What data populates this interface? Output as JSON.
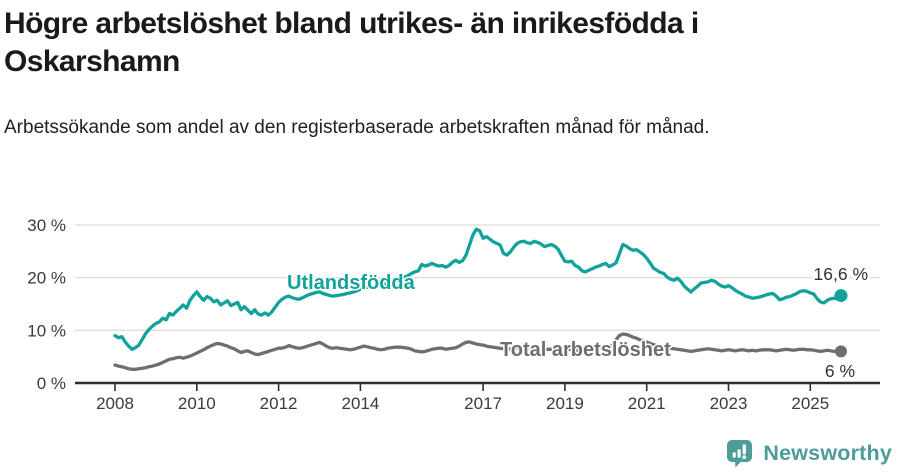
{
  "header": {
    "title": "Högre arbetslöshet bland utrikes- än inrikesfödda i Oskarshamn",
    "subtitle": "Arbetssökande som andel av den registerbaserade arbetskraften månad för månad."
  },
  "chart_data": {
    "type": "line",
    "title": "Högre arbetslöshet bland utrikes- än inrikesfödda i Oskarshamn",
    "subtitle": "Arbetssökande som andel av den registerbaserade arbetskraften månad för månad.",
    "xlabel": "",
    "ylabel": "",
    "ylim": [
      0,
      31
    ],
    "xlim": [
      2008.0,
      2025.83
    ],
    "grid": "horizontal",
    "legend_position": "inline-labels",
    "x_start": 2008.0,
    "x_step": 0.083333,
    "x_tick_years": [
      2008,
      2010,
      2012,
      2014,
      2017,
      2019,
      2021,
      2023,
      2025
    ],
    "x_tick_labels": [
      "2008",
      "2010",
      "2012",
      "2014",
      "2017",
      "2019",
      "2021",
      "2023",
      "2025"
    ],
    "y_ticks": [
      0,
      10,
      20,
      30
    ],
    "y_tick_labels": [
      "0 %",
      "10 %",
      "20 %",
      "30 %"
    ],
    "series": [
      {
        "name": "Utlandsfödda",
        "color": "#12a29c",
        "end_label": "16,6 %",
        "end_value": 16.6,
        "values": [
          9.0,
          8.6,
          8.8,
          7.8,
          7.0,
          6.4,
          6.7,
          7.2,
          8.3,
          9.4,
          10.2,
          10.8,
          11.3,
          11.6,
          12.3,
          12.0,
          13.2,
          12.9,
          13.6,
          14.2,
          14.8,
          14.2,
          15.7,
          16.6,
          17.3,
          16.4,
          15.7,
          16.4,
          16.1,
          15.4,
          15.7,
          14.8,
          15.2,
          15.6,
          14.7,
          15.0,
          15.3,
          13.9,
          14.5,
          13.8,
          13.2,
          13.9,
          13.1,
          12.9,
          13.3,
          12.9,
          13.5,
          14.4,
          15.3,
          15.9,
          16.3,
          16.5,
          16.2,
          16.0,
          15.9,
          16.2,
          16.5,
          16.8,
          17.0,
          17.2,
          17.3,
          17.0,
          16.8,
          16.6,
          16.5,
          16.6,
          16.7,
          16.8,
          17.0,
          17.1,
          17.3,
          17.5,
          17.8,
          18.0,
          18.2,
          18.1,
          18.0,
          18.3,
          18.5,
          18.7,
          18.9,
          19.0,
          19.2,
          19.5,
          19.8,
          20.1,
          20.4,
          20.8,
          21.1,
          21.3,
          22.5,
          22.2,
          22.4,
          22.7,
          22.4,
          22.2,
          22.3,
          22.0,
          22.3,
          22.9,
          23.3,
          22.9,
          23.2,
          24.3,
          26.2,
          28.1,
          29.2,
          28.9,
          27.5,
          27.8,
          27.3,
          26.8,
          26.5,
          26.2,
          24.6,
          24.3,
          24.9,
          25.8,
          26.5,
          26.8,
          26.9,
          26.6,
          26.5,
          26.9,
          26.7,
          26.4,
          25.9,
          26.1,
          26.3,
          26.0,
          25.4,
          24.2,
          23.1,
          23.0,
          23.1,
          22.3,
          22.0,
          21.3,
          21.1,
          21.4,
          21.7,
          22.0,
          22.2,
          22.5,
          22.7,
          22.1,
          22.4,
          22.8,
          24.5,
          26.3,
          26.0,
          25.5,
          25.2,
          25.3,
          24.9,
          24.4,
          23.7,
          22.8,
          21.8,
          21.4,
          21.0,
          20.8,
          20.1,
          19.7,
          19.5,
          19.9,
          19.3,
          18.4,
          17.8,
          17.3,
          17.9,
          18.4,
          19.0,
          19.1,
          19.2,
          19.5,
          19.3,
          18.8,
          18.4,
          18.2,
          18.5,
          18.1,
          17.6,
          17.2,
          16.9,
          16.5,
          16.3,
          16.1,
          16.2,
          16.3,
          16.5,
          16.7,
          16.9,
          17.0,
          16.5,
          15.8,
          16.0,
          16.3,
          16.4,
          16.7,
          17.0,
          17.4,
          17.5,
          17.4,
          17.1,
          16.9,
          16.0,
          15.4,
          15.2,
          15.7,
          16.0,
          16.1,
          16.0,
          16.6
        ]
      },
      {
        "name": "Total arbetslöshet",
        "color": "#6e6e6e",
        "end_label": "6 %",
        "end_value": 6.0,
        "values": [
          3.4,
          3.2,
          3.1,
          2.9,
          2.7,
          2.6,
          2.6,
          2.7,
          2.8,
          2.9,
          3.1,
          3.2,
          3.4,
          3.6,
          3.9,
          4.2,
          4.5,
          4.6,
          4.8,
          4.9,
          4.7,
          4.9,
          5.1,
          5.4,
          5.7,
          6.0,
          6.3,
          6.7,
          7.0,
          7.3,
          7.5,
          7.4,
          7.2,
          7.0,
          6.7,
          6.5,
          6.1,
          5.8,
          6.0,
          6.1,
          5.8,
          5.5,
          5.4,
          5.6,
          5.8,
          6.0,
          6.2,
          6.4,
          6.6,
          6.6,
          6.8,
          7.1,
          6.9,
          6.7,
          6.6,
          6.7,
          6.9,
          7.1,
          7.3,
          7.5,
          7.7,
          7.4,
          7.0,
          6.7,
          6.6,
          6.7,
          6.6,
          6.5,
          6.4,
          6.3,
          6.4,
          6.6,
          6.8,
          7.0,
          6.9,
          6.7,
          6.6,
          6.4,
          6.3,
          6.4,
          6.6,
          6.7,
          6.8,
          6.8,
          6.8,
          6.7,
          6.6,
          6.4,
          6.1,
          6.0,
          5.9,
          6.0,
          6.2,
          6.4,
          6.5,
          6.6,
          6.6,
          6.4,
          6.5,
          6.6,
          6.7,
          7.0,
          7.4,
          7.7,
          7.8,
          7.6,
          7.4,
          7.3,
          7.2,
          7.0,
          6.9,
          6.8,
          6.7,
          6.6,
          6.5,
          6.4,
          6.5,
          6.6,
          6.7,
          6.8,
          6.8,
          6.7,
          6.6,
          6.5,
          6.4,
          6.3,
          6.3,
          6.4,
          6.4,
          6.5,
          6.5,
          6.5,
          6.5,
          6.4,
          6.3,
          6.2,
          6.2,
          6.3,
          6.4,
          6.5,
          6.6,
          6.7,
          6.7,
          6.7,
          6.8,
          6.9,
          7.2,
          8.2,
          9.0,
          9.3,
          9.2,
          9.0,
          8.7,
          8.5,
          8.2,
          8.0,
          7.8,
          7.5,
          7.3,
          7.1,
          7.0,
          6.8,
          6.7,
          6.6,
          6.5,
          6.4,
          6.3,
          6.2,
          6.1,
          6.0,
          6.1,
          6.2,
          6.3,
          6.4,
          6.5,
          6.4,
          6.3,
          6.2,
          6.1,
          6.2,
          6.3,
          6.2,
          6.1,
          6.2,
          6.3,
          6.2,
          6.1,
          6.2,
          6.1,
          6.2,
          6.3,
          6.3,
          6.3,
          6.2,
          6.1,
          6.2,
          6.3,
          6.4,
          6.3,
          6.2,
          6.3,
          6.4,
          6.4,
          6.3,
          6.3,
          6.2,
          6.1,
          6.0,
          6.1,
          6.2,
          6.1,
          6.0,
          6.0,
          6.0
        ]
      }
    ]
  },
  "colors": {
    "accent_teal": "#12a29c",
    "series_gray": "#6e6e6e",
    "axis_dark": "#2e2e2e",
    "gridline": "#dcdcdc",
    "brand_teal": "#4c9c98"
  },
  "footer": {
    "brand": "Newsworthy"
  }
}
